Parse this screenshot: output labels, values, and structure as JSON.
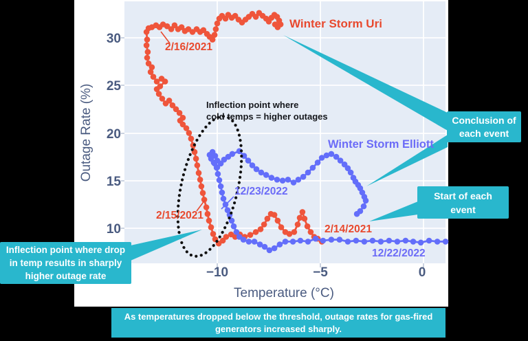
{
  "colors": {
    "background": "#000000",
    "card": "#ffffff",
    "plot_bg": "#e5ecf6",
    "grid": "#ffffff",
    "teal_callout": "#29b7cd",
    "uri_red": "#ef553b",
    "uri_red_text": "#e8492e",
    "elliott_blue": "#636efa",
    "elliott_blue_text": "#6b6bf7",
    "axis_text": "#4a5b80",
    "note_text": "#15171c"
  },
  "chart_data": {
    "type": "line",
    "title": "",
    "xlabel": "Temperature (°C)",
    "ylabel": "Outage Rate (%)",
    "xlim": [
      -14.5,
      1.1
    ],
    "ylim": [
      7.2,
      33.5
    ],
    "xticks": [
      -10,
      -5,
      0
    ],
    "yticks": [
      30,
      25,
      20,
      15,
      10
    ],
    "xtick_labels": [
      "−10",
      "−5",
      "0"
    ],
    "ytick_labels": [
      "30",
      "25",
      "20",
      "15",
      "10"
    ],
    "grid": true,
    "legend_position": "none",
    "series": [
      {
        "id": "uri",
        "name": "Winter Storm Uri",
        "color": "#ef553b",
        "start_annotation": "2/14/2021",
        "mid_annotation": "2/15/2021",
        "end_annotation": "2/16/2021",
        "points": [
          [
            -4.93,
            8.6
          ],
          [
            -5.13,
            8.9
          ],
          [
            -5.3,
            9.1
          ],
          [
            -5.47,
            9.6
          ],
          [
            -5.63,
            10.2
          ],
          [
            -5.77,
            11.0
          ],
          [
            -5.87,
            11.7
          ],
          [
            -6.0,
            11.1
          ],
          [
            -6.1,
            10.4
          ],
          [
            -6.27,
            9.6
          ],
          [
            -6.5,
            9.4
          ],
          [
            -6.7,
            9.6
          ],
          [
            -6.9,
            10.1
          ],
          [
            -7.07,
            10.8
          ],
          [
            -7.23,
            11.4
          ],
          [
            -7.4,
            11.5
          ],
          [
            -7.57,
            11.0
          ],
          [
            -7.73,
            10.4
          ],
          [
            -7.9,
            9.9
          ],
          [
            -8.13,
            9.6
          ],
          [
            -8.4,
            9.3
          ],
          [
            -8.67,
            9.1
          ],
          [
            -8.9,
            9.35
          ],
          [
            -9.13,
            9.1
          ],
          [
            -9.33,
            9.35
          ],
          [
            -9.57,
            9.1
          ],
          [
            -9.73,
            8.7
          ],
          [
            -9.93,
            8.4
          ],
          [
            -10.1,
            8.85
          ],
          [
            -10.2,
            9.4
          ],
          [
            -10.3,
            10.1
          ],
          [
            -10.4,
            10.8
          ],
          [
            -10.47,
            11.5
          ],
          [
            -10.53,
            12.2
          ],
          [
            -10.63,
            13.0
          ],
          [
            -10.7,
            13.7
          ],
          [
            -10.77,
            14.4
          ],
          [
            -10.83,
            15.1
          ],
          [
            -10.9,
            15.8
          ],
          [
            -10.97,
            16.6
          ],
          [
            -11.03,
            17.3
          ],
          [
            -11.1,
            18.0
          ],
          [
            -11.17,
            18.7
          ],
          [
            -11.27,
            19.4
          ],
          [
            -11.37,
            20.0
          ],
          [
            -11.5,
            20.5
          ],
          [
            -11.67,
            20.9
          ],
          [
            -11.8,
            21.3
          ],
          [
            -11.67,
            21.6
          ],
          [
            -11.83,
            22.1
          ],
          [
            -12.0,
            22.5
          ],
          [
            -12.17,
            22.9
          ],
          [
            -12.33,
            23.4
          ],
          [
            -12.5,
            23.1
          ],
          [
            -12.67,
            23.6
          ],
          [
            -12.83,
            24.1
          ],
          [
            -12.93,
            24.6
          ],
          [
            -12.77,
            24.9
          ],
          [
            -12.53,
            25.4
          ],
          [
            -12.7,
            25.7
          ],
          [
            -12.93,
            25.4
          ],
          [
            -13.1,
            25.9
          ],
          [
            -13.23,
            26.4
          ],
          [
            -13.17,
            26.9
          ],
          [
            -13.33,
            27.3
          ],
          [
            -13.4,
            27.9
          ],
          [
            -13.37,
            28.5
          ],
          [
            -13.43,
            29.2
          ],
          [
            -13.4,
            29.8
          ],
          [
            -13.43,
            30.6
          ],
          [
            -13.33,
            31.0
          ],
          [
            -13.17,
            31.1
          ],
          [
            -12.97,
            31.3
          ],
          [
            -12.8,
            31.1
          ],
          [
            -12.63,
            31.4
          ],
          [
            -12.43,
            31.2
          ],
          [
            -12.23,
            30.9
          ],
          [
            -12.07,
            31.3
          ],
          [
            -11.9,
            30.9
          ],
          [
            -11.73,
            31.1
          ],
          [
            -11.57,
            30.7
          ],
          [
            -11.4,
            30.9
          ],
          [
            -11.2,
            30.6
          ],
          [
            -11.0,
            30.9
          ],
          [
            -10.83,
            30.6
          ],
          [
            -10.67,
            30.8
          ],
          [
            -10.5,
            30.4
          ],
          [
            -10.37,
            30.1
          ],
          [
            -10.23,
            29.8
          ],
          [
            -10.13,
            30.3
          ],
          [
            -10.07,
            30.9
          ],
          [
            -10.0,
            31.5
          ],
          [
            -9.9,
            32.0
          ],
          [
            -9.77,
            32.3
          ],
          [
            -9.6,
            32.0
          ],
          [
            -9.47,
            32.4
          ],
          [
            -9.3,
            32.1
          ],
          [
            -9.13,
            32.3
          ],
          [
            -8.97,
            31.9
          ],
          [
            -8.8,
            31.6
          ],
          [
            -8.63,
            31.9
          ],
          [
            -8.47,
            32.2
          ],
          [
            -8.3,
            32.5
          ],
          [
            -8.13,
            32.2
          ],
          [
            -7.97,
            32.6
          ],
          [
            -7.8,
            32.3
          ],
          [
            -7.63,
            32.0
          ],
          [
            -7.5,
            31.7
          ],
          [
            -7.37,
            32.1
          ],
          [
            -7.23,
            32.4
          ],
          [
            -7.1,
            32.2
          ],
          [
            -7.0,
            31.8
          ],
          [
            -6.93,
            31.4
          ],
          [
            -7.07,
            31.1
          ],
          [
            -7.2,
            31.4
          ]
        ]
      },
      {
        "id": "elliott",
        "name": "Winter Storm Elliott",
        "color": "#636efa",
        "start_annotation": "12/22/2022",
        "mid_annotation": "12/23/2022",
        "points": [
          [
            1.07,
            8.6
          ],
          [
            0.67,
            8.6
          ],
          [
            0.27,
            8.7
          ],
          [
            -0.13,
            8.5
          ],
          [
            -0.5,
            8.6
          ],
          [
            -0.87,
            8.7
          ],
          [
            -1.27,
            8.6
          ],
          [
            -1.67,
            8.7
          ],
          [
            -2.07,
            8.6
          ],
          [
            -2.47,
            8.7
          ],
          [
            -2.87,
            8.6
          ],
          [
            -3.27,
            8.7
          ],
          [
            -3.67,
            8.6
          ],
          [
            -4.07,
            8.8
          ],
          [
            -4.47,
            8.8
          ],
          [
            -4.87,
            8.7
          ],
          [
            -5.23,
            8.9
          ],
          [
            -5.6,
            8.6
          ],
          [
            -5.97,
            8.7
          ],
          [
            -6.33,
            8.6
          ],
          [
            -6.7,
            8.6
          ],
          [
            -6.97,
            8.3
          ],
          [
            -7.23,
            7.9
          ],
          [
            -7.47,
            7.7
          ],
          [
            -7.7,
            8.05
          ],
          [
            -7.93,
            8.3
          ],
          [
            -8.2,
            8.6
          ],
          [
            -8.47,
            8.6
          ],
          [
            -8.73,
            8.8
          ],
          [
            -8.93,
            9.1
          ],
          [
            -9.07,
            9.6
          ],
          [
            -9.2,
            10.2
          ],
          [
            -9.3,
            10.8
          ],
          [
            -9.4,
            11.4
          ],
          [
            -9.5,
            11.9
          ],
          [
            -9.6,
            12.5
          ],
          [
            -9.7,
            13.1
          ],
          [
            -9.77,
            13.75
          ],
          [
            -9.83,
            14.4
          ],
          [
            -9.9,
            15.05
          ],
          [
            -9.97,
            15.7
          ],
          [
            -10.03,
            16.35
          ],
          [
            -10.17,
            16.9
          ],
          [
            -10.3,
            17.3
          ],
          [
            -10.37,
            17.7
          ],
          [
            -10.23,
            18.0
          ],
          [
            -10.1,
            17.6
          ],
          [
            -10.0,
            17.1
          ],
          [
            -10.13,
            16.8
          ],
          [
            -10.0,
            16.4
          ],
          [
            -9.83,
            16.8
          ],
          [
            -9.67,
            17.2
          ],
          [
            -9.47,
            17.5
          ],
          [
            -9.27,
            17.8
          ],
          [
            -8.93,
            18.1
          ],
          [
            -8.7,
            17.6
          ],
          [
            -8.5,
            17.1
          ],
          [
            -8.3,
            16.6
          ],
          [
            -8.1,
            16.2
          ],
          [
            -7.87,
            15.85
          ],
          [
            -7.63,
            15.6
          ],
          [
            -7.37,
            15.3
          ],
          [
            -7.1,
            15.1
          ],
          [
            -6.83,
            15.0
          ],
          [
            -6.57,
            15.1
          ],
          [
            -6.3,
            14.8
          ],
          [
            -6.07,
            15.1
          ],
          [
            -5.83,
            15.4
          ],
          [
            -5.6,
            15.85
          ],
          [
            -5.37,
            16.35
          ],
          [
            -5.13,
            16.9
          ],
          [
            -4.93,
            17.4
          ],
          [
            -4.7,
            17.65
          ],
          [
            -4.47,
            17.8
          ],
          [
            -4.23,
            17.5
          ],
          [
            -4.03,
            17.1
          ],
          [
            -3.83,
            16.7
          ],
          [
            -3.67,
            16.3
          ],
          [
            -3.53,
            15.85
          ],
          [
            -3.4,
            15.3
          ],
          [
            -3.3,
            14.9
          ],
          [
            -3.17,
            14.55
          ],
          [
            -3.07,
            14.2
          ],
          [
            -2.97,
            13.75
          ],
          [
            -2.87,
            13.3
          ],
          [
            -2.8,
            12.9
          ],
          [
            -2.9,
            12.3
          ],
          [
            -3.07,
            11.8
          ],
          [
            -3.23,
            11.5
          ]
        ]
      }
    ]
  },
  "labels": {
    "uri": "Winter Storm Uri",
    "elliott": "Winter Storm Elliott",
    "date_2_16": "2/16/2021",
    "date_2_15": "2/15/2021",
    "date_2_14": "2/14/2021",
    "date_12_23": "12/23/2022",
    "date_12_22": "12/22/2022",
    "xlabel": "Temperature (°C)",
    "ylabel": "Outage Rate (%)"
  },
  "inflection_note": {
    "line1": "Inflection point where",
    "line2": "cold temps = higher outages"
  },
  "callouts": {
    "conclusion": {
      "lines": [
        "Conclusion of",
        "each event"
      ]
    },
    "start": {
      "lines": [
        "Start of each",
        "event"
      ]
    },
    "inflection": {
      "lines": [
        "Inflection point where drop",
        "in temp results in sharply",
        "higher outage rate"
      ]
    },
    "banner": {
      "lines": [
        "As temperatures dropped below the threshold, outage rates for gas-fired",
        "generators increased sharply."
      ]
    }
  }
}
